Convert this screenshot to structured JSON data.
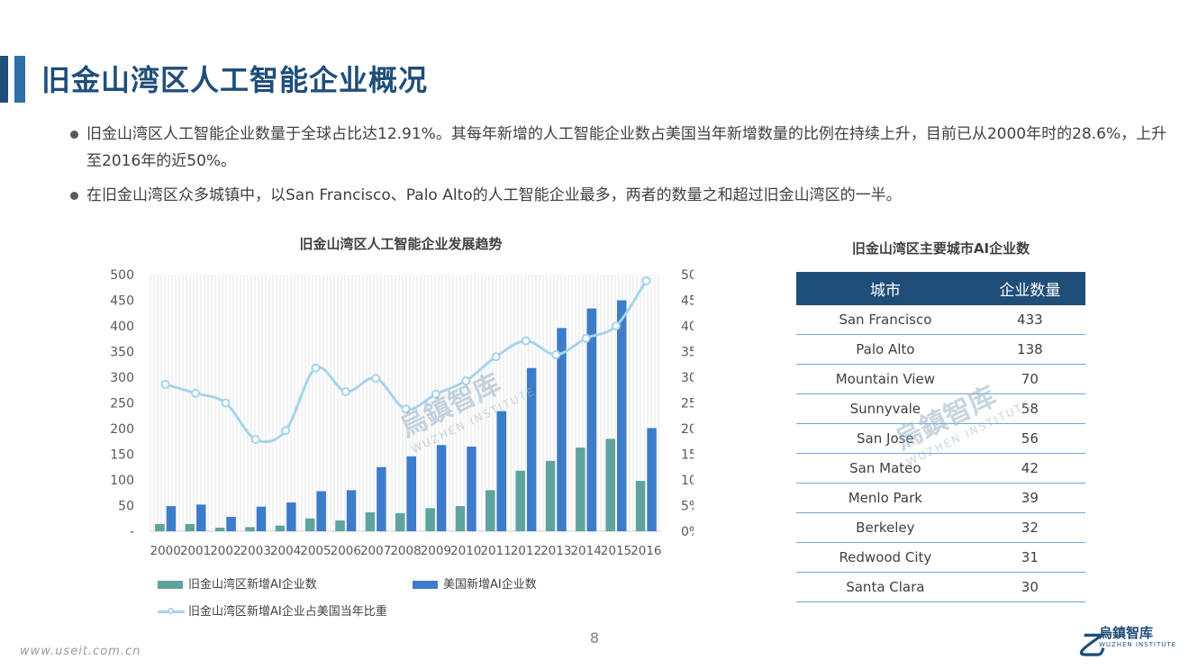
{
  "page": {
    "title": "旧金山湾区人工智能企业概况",
    "bullets": [
      "旧金山湾区人工智能企业数量于全球占比达12.91%。其每年新增的人工智能企业数占美国当年新增数量的比例在持续上升，目前已从2000年时的28.6%，上升至2016年的近50%。",
      "在旧金山湾区众多城镇中，以San Francisco、Palo Alto的人工智能企业最多，两者的数量之和超过旧金山湾区的一半。"
    ],
    "page_number": "8",
    "url": "www.useit.com.cn"
  },
  "logo": {
    "mark": "乙",
    "cn": "烏鎮智库",
    "en": "WUZHEN INSTITUTE"
  },
  "watermark": {
    "cn": "烏鎮智库",
    "en": "WUZHEN INSTITUTE"
  },
  "colors": {
    "navy": "#1f4e79",
    "bar_bay": "#5fa39f",
    "bar_us": "#3d7cc9",
    "line": "#a6d4ea"
  },
  "chart_data": {
    "type": "bar",
    "title": "旧金山湾区人工智能企业发展趋势",
    "categories": [
      "2000",
      "2001",
      "2002",
      "2003",
      "2004",
      "2005",
      "2006",
      "2007",
      "2008",
      "2009",
      "2010",
      "2011",
      "2012",
      "2013",
      "2014",
      "2015",
      "2016"
    ],
    "series": [
      {
        "name": "旧金山湾区新增AI企业数",
        "type": "bar",
        "axis": "left",
        "values": [
          14,
          14,
          7,
          8,
          11,
          25,
          21,
          37,
          35,
          45,
          49,
          80,
          118,
          137,
          163,
          180,
          98
        ]
      },
      {
        "name": "美国新增AI企业数",
        "type": "bar",
        "axis": "left",
        "values": [
          49,
          52,
          28,
          48,
          56,
          78,
          80,
          125,
          146,
          168,
          165,
          234,
          318,
          396,
          434,
          450,
          201
        ]
      },
      {
        "name": "旧金山湾区新增AI企业占美国当年比重",
        "type": "line",
        "axis": "right",
        "values": [
          28.6,
          26.9,
          25.0,
          17.9,
          19.6,
          31.8,
          27.2,
          29.8,
          23.8,
          26.7,
          29.3,
          34.0,
          37.1,
          34.4,
          37.6,
          40.0,
          48.8
        ]
      }
    ],
    "y_left": {
      "min": 0,
      "max": 500,
      "ticks": [
        "-",
        "50",
        "100",
        "150",
        "200",
        "250",
        "300",
        "350",
        "400",
        "450",
        "500"
      ]
    },
    "y_right": {
      "min": 0,
      "max": 50,
      "ticks": [
        "0%",
        "5%",
        "10%",
        "15%",
        "20%",
        "25%",
        "30%",
        "35%",
        "40%",
        "45%",
        "50%"
      ]
    },
    "grid": "vertical-hatch",
    "legend": "bottom"
  },
  "table": {
    "title": "旧金山湾区主要城市AI企业数",
    "headers": [
      "城市",
      "企业数量"
    ],
    "rows": [
      [
        "San Francisco",
        "433"
      ],
      [
        "Palo Alto",
        "138"
      ],
      [
        "Mountain View",
        "70"
      ],
      [
        "Sunnyvale",
        "58"
      ],
      [
        "San Jose",
        "56"
      ],
      [
        "San Mateo",
        "42"
      ],
      [
        "Menlo Park",
        "39"
      ],
      [
        "Berkeley",
        "32"
      ],
      [
        "Redwood City",
        "31"
      ],
      [
        "Santa Clara",
        "30"
      ]
    ]
  }
}
